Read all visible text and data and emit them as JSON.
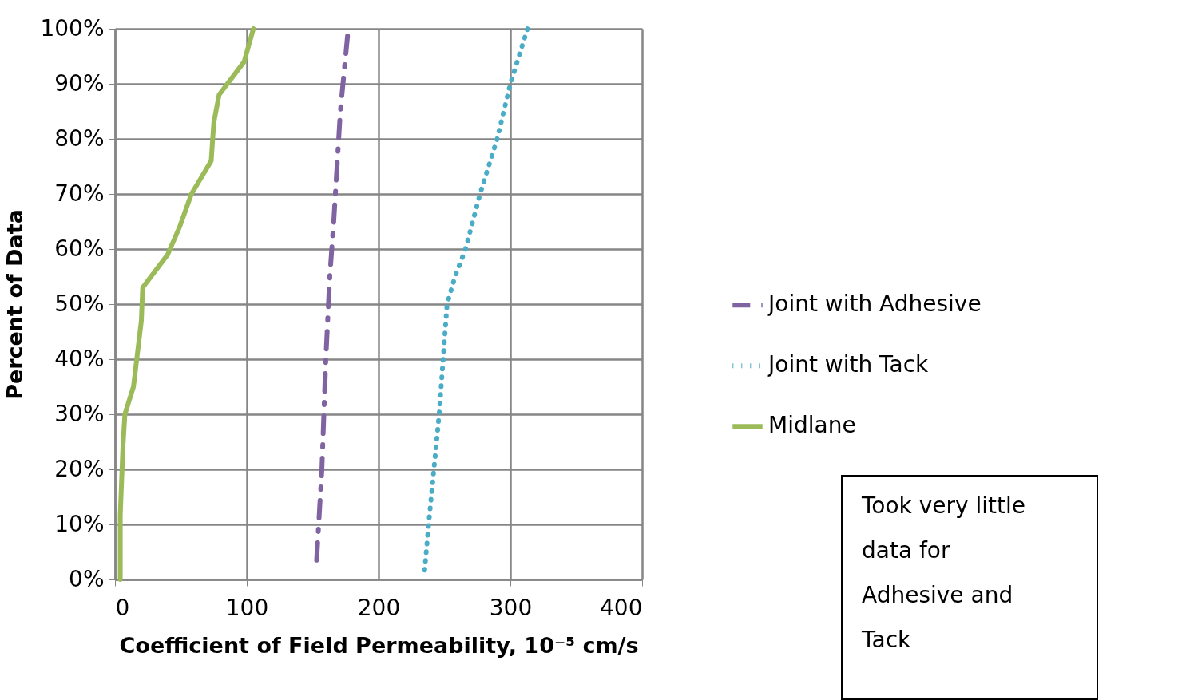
{
  "chart_data": {
    "type": "line",
    "xlabel": "Coefficient of Field Permeability, 10⁻⁵ cm/s",
    "ylabel": "Percent of Data",
    "xlim": [
      0,
      400
    ],
    "xticks": [
      0,
      100,
      200,
      300,
      400
    ],
    "ylim": [
      0,
      100
    ],
    "yticks": [
      {
        "value": 0,
        "label": "0%"
      },
      {
        "value": 10,
        "label": "10%"
      },
      {
        "value": 20,
        "label": "20%"
      },
      {
        "value": 30,
        "label": "30%"
      },
      {
        "value": 40,
        "label": "40%"
      },
      {
        "value": 50,
        "label": "50%"
      },
      {
        "value": 60,
        "label": "60%"
      },
      {
        "value": 70,
        "label": "70%"
      },
      {
        "value": 80,
        "label": "80%"
      },
      {
        "value": 90,
        "label": "90%"
      },
      {
        "value": 100,
        "label": "100%"
      }
    ],
    "grid": true,
    "legend": "right",
    "marker": "none",
    "series": [
      {
        "name": "Joint with Adhesive",
        "color": "#8064a2",
        "line_style": "dashed",
        "x": [
          153,
          157,
          160,
          163,
          166,
          171,
          177
        ],
        "values": [
          3.5,
          20,
          40,
          55,
          65,
          85,
          100
        ]
      },
      {
        "name": "Joint with Tack",
        "color": "#4bacc6",
        "line_style": "dotted",
        "x": [
          235,
          238,
          242,
          246,
          249,
          252,
          258,
          266,
          277,
          290,
          300,
          313
        ],
        "values": [
          1.7,
          10,
          20,
          30,
          40,
          50,
          55,
          60,
          70,
          80,
          90,
          100
        ]
      },
      {
        "name": "Midlane",
        "color": "#9bbb59",
        "line_style": "solid",
        "x": [
          4,
          4,
          6,
          7.5,
          14,
          20,
          21,
          40,
          49,
          58,
          73,
          75,
          79,
          98,
          105
        ],
        "values": [
          0,
          11.7,
          24,
          30,
          35,
          47,
          53,
          59,
          64,
          70,
          76,
          83,
          88,
          94,
          100
        ]
      }
    ],
    "annotations": [
      "Took very little data for Adhesive and Tack"
    ]
  }
}
